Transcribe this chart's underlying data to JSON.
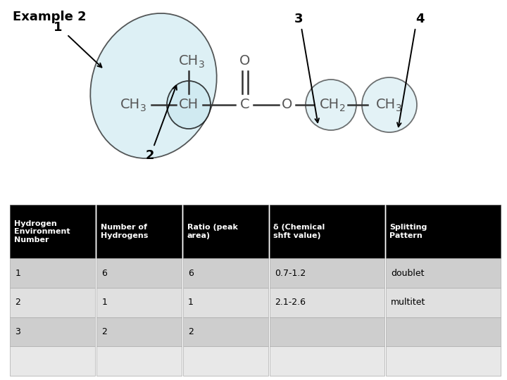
{
  "title": "Example 2",
  "table_header": [
    "Hydrogen\nEnvironment\nNumber",
    "Number of\nHydrogens",
    "Ratio (peak\narea)",
    "δ (Chemical\nshft value)",
    "Splitting\nPattern"
  ],
  "table_rows": [
    [
      "1",
      "6",
      "6",
      "0.7-1.2",
      "doublet"
    ],
    [
      "2",
      "1",
      "1",
      "2.1-2.6",
      "multitet"
    ],
    [
      "3",
      "2",
      "2",
      "",
      ""
    ],
    [
      "",
      "",
      "",
      "",
      ""
    ]
  ],
  "header_bg": "#000000",
  "header_fg": "#ffffff",
  "row_bg_odd": "#cecece",
  "row_bg_even": "#e0e0e0",
  "row_bg_last": "#e8e8e8",
  "background": "#ffffff",
  "mol_bg": "#cce8f0",
  "mol_edge": "#000000",
  "chem_color": "#555555"
}
